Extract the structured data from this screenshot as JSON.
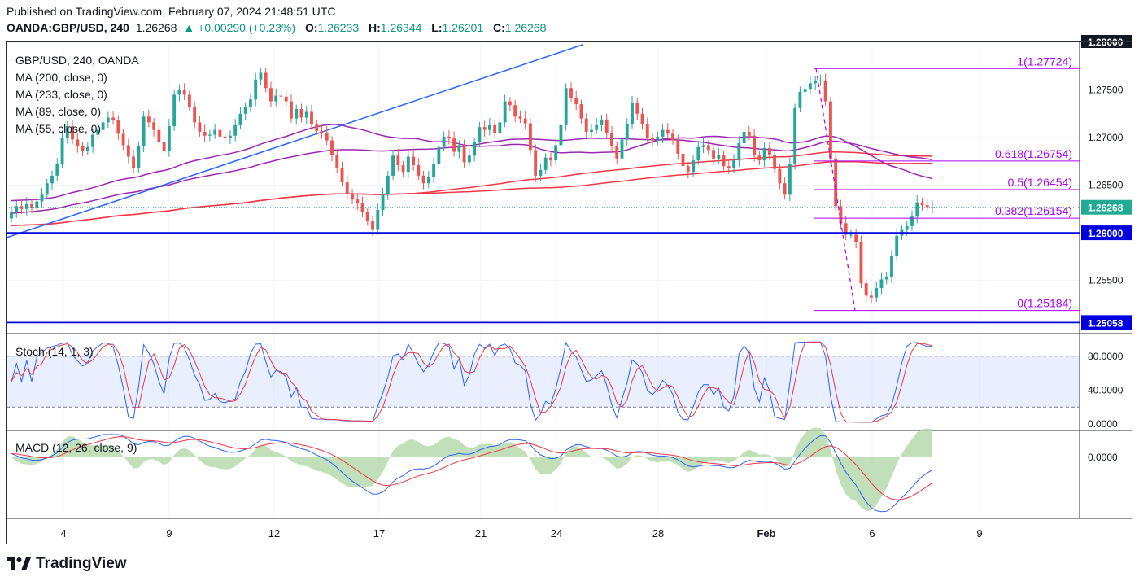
{
  "header": {
    "published": "Published on TradingView.com, February 07, 2024 21:48:51 UTC",
    "symbol": "OANDA:GBP/USD, 240",
    "last": "1.26268",
    "change": "+0.00290 (+0.23%)",
    "o_label": "O:",
    "o_val": "1.26233",
    "h_label": "H:",
    "h_val": "1.26344",
    "l_label": "L:",
    "l_val": "1.26201",
    "c_label": "C:",
    "c_val": "1.26268"
  },
  "legend": {
    "title": "GBP/USD, 240, OANDA",
    "ma200": "MA (200, close, 0)",
    "ma233": "MA (233, close, 0)",
    "ma89": "MA (89, close, 0)",
    "ma55": "MA (55, close, 0)",
    "stoch": "Stoch (14, 1, 3)",
    "macd": "MACD (12, 26, close, 9)"
  },
  "price_axis": {
    "labels": [
      "1.28000",
      "1.27500",
      "1.27000",
      "1.26500",
      "1.25500"
    ],
    "current": "1.26268",
    "level": "1.26000",
    "low_level": "1.25058"
  },
  "stoch_axis": [
    "80.0000",
    "40.0000",
    "0.0000"
  ],
  "macd_axis": [
    "0.0000"
  ],
  "x_axis": [
    "4",
    "9",
    "12",
    "17",
    "21",
    "24",
    "28",
    "Feb",
    "6",
    "9"
  ],
  "fib": [
    {
      "label": "1(1.27724)",
      "value": 1.27724
    },
    {
      "label": "0.618(1.26754)",
      "value": 1.26754
    },
    {
      "label": "0.5(1.26454)",
      "value": 1.26454
    },
    {
      "label": "0.382(1.26154)",
      "value": 1.26154
    },
    {
      "label": "0(1.25184)",
      "value": 1.25184
    }
  ],
  "colors": {
    "up": "#26a69a",
    "down": "#ef5350",
    "ma_red": "#f23645",
    "ma_purple": "#9c27b0",
    "trend": "#2962ff",
    "level": "#0000e0",
    "fib": "#aa00ff",
    "macd": "#2962ff",
    "signal": "#f23645",
    "hist": "#b2d8a7"
  },
  "brand": "TradingView",
  "chart_data": {
    "type": "candlestick",
    "symbol": "GBP/USD",
    "timeframe": "240",
    "ylim": [
      1.2495,
      1.28
    ],
    "approx_closes": [
      1.2622,
      1.2628,
      1.2625,
      1.263,
      1.2626,
      1.2633,
      1.264,
      1.2652,
      1.266,
      1.2672,
      1.27,
      1.2712,
      1.2698,
      1.2691,
      1.2686,
      1.269,
      1.2703,
      1.2708,
      1.2716,
      1.2721,
      1.2718,
      1.2704,
      1.2692,
      1.268,
      1.2668,
      1.2691,
      1.2722,
      1.2716,
      1.2708,
      1.2695,
      1.2686,
      1.2712,
      1.2745,
      1.275,
      1.2745,
      1.2732,
      1.2716,
      1.2706,
      1.2702,
      1.2703,
      1.2708,
      1.2701,
      1.27,
      1.2702,
      1.2713,
      1.2725,
      1.2732,
      1.274,
      1.2761,
      1.2768,
      1.2752,
      1.2738,
      1.2744,
      1.2743,
      1.2738,
      1.272,
      1.273,
      1.2721,
      1.2727,
      1.2714,
      1.2707,
      1.2705,
      1.2697,
      1.2682,
      1.2668,
      1.2653,
      1.2641,
      1.2635,
      1.2631,
      1.2622,
      1.2612,
      1.2603,
      1.2624,
      1.264,
      1.266,
      1.2681,
      1.2671,
      1.2664,
      1.268,
      1.2671,
      1.266,
      1.2652,
      1.2659,
      1.2672,
      1.269,
      1.2701,
      1.2699,
      1.2685,
      1.2692,
      1.2674,
      1.2681,
      1.2695,
      1.2711,
      1.2708,
      1.2713,
      1.2705,
      1.2716,
      1.2738,
      1.2734,
      1.2722,
      1.272,
      1.2715,
      1.2687,
      1.266,
      1.2666,
      1.2679,
      1.2676,
      1.2692,
      1.2713,
      1.2752,
      1.2742,
      1.2735,
      1.272,
      1.2706,
      1.2708,
      1.2713,
      1.2719,
      1.2705,
      1.2691,
      1.2678,
      1.2698,
      1.2714,
      1.2736,
      1.2725,
      1.2714,
      1.27,
      1.2697,
      1.2701,
      1.2708,
      1.2704,
      1.2697,
      1.2683,
      1.267,
      1.2664,
      1.2676,
      1.269,
      1.2692,
      1.2687,
      1.2678,
      1.2682,
      1.267,
      1.2668,
      1.2676,
      1.2694,
      1.2706,
      1.2702,
      1.2681,
      1.2676,
      1.2689,
      1.2682,
      1.2667,
      1.2652,
      1.264,
      1.2672,
      1.2731,
      1.2748,
      1.2751,
      1.2757,
      1.276,
      1.276,
      1.2738,
      1.2678,
      1.2628,
      1.261,
      1.2598,
      1.2598,
      1.259,
      1.2547,
      1.2534,
      1.2532,
      1.2542,
      1.2551,
      1.2554,
      1.2576,
      1.2597,
      1.2603,
      1.2607,
      1.2617,
      1.2632,
      1.2629,
      1.2627,
      1.2627
    ],
    "ma_red_fast": "MA (200, close, 0)",
    "ma_red_slow": "MA (233, close, 0)",
    "ma_purple_a": "MA (89, close, 0)",
    "ma_purple_b": "MA (55, close, 0)",
    "horizontal_levels": [
      1.26,
      1.25058
    ],
    "fibonacci": {
      "from": 1.27724,
      "to": 1.25184
    },
    "stoch": {
      "params": "14, 1, 3",
      "range": [
        0,
        100
      ],
      "bands": [
        20,
        80
      ]
    },
    "macd": {
      "params": "12, 26, close, 9"
    }
  }
}
